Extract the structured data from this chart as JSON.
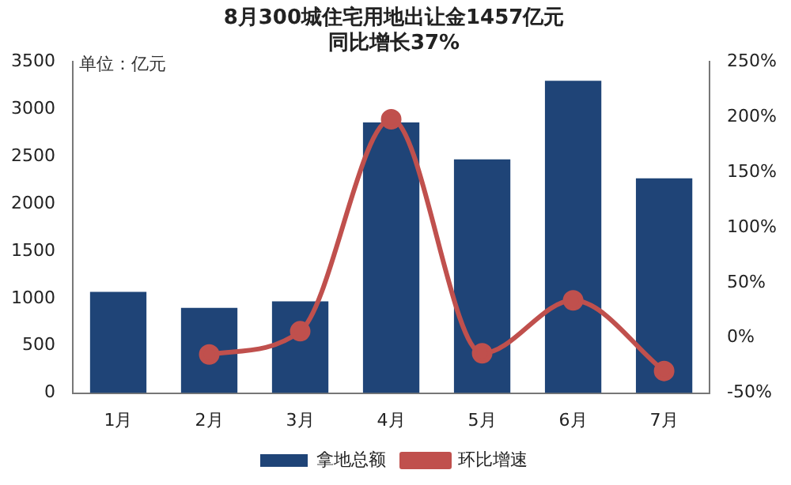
{
  "chart_data": {
    "type": "bar",
    "title": "8月300城住宅用地出让金1457亿元",
    "subtitle": "同比增长37%",
    "categories": [
      "1月",
      "2月",
      "3月",
      "4月",
      "5月",
      "6月",
      "7月"
    ],
    "series": [
      {
        "name": "拿地总额",
        "color": "#1f4477",
        "values": [
          1070,
          900,
          970,
          2860,
          2470,
          3300,
          2270
        ]
      },
      {
        "name": "环比增速",
        "type": "line",
        "axis": "y2",
        "color": "#c0504d",
        "values": [
          null,
          -15,
          6,
          198,
          -14,
          34,
          -30
        ]
      }
    ],
    "ylim": [
      0,
      3500
    ],
    "yticks": [
      0,
      500,
      1000,
      1500,
      2000,
      2500,
      3000,
      3500
    ],
    "y2lim": [
      -50,
      250
    ],
    "y2ticks": [
      {
        "value": -50,
        "label": "-50%"
      },
      {
        "value": 0,
        "label": "0%"
      },
      {
        "value": 50,
        "label": "50%"
      },
      {
        "value": 100,
        "label": "100%"
      },
      {
        "value": 150,
        "label": "150%"
      },
      {
        "value": 200,
        "label": "200%"
      },
      {
        "value": 250,
        "label": "250%"
      }
    ],
    "annotations": [
      "单位：亿元"
    ],
    "legend": "bottom",
    "marker": "circle",
    "grid": false
  }
}
